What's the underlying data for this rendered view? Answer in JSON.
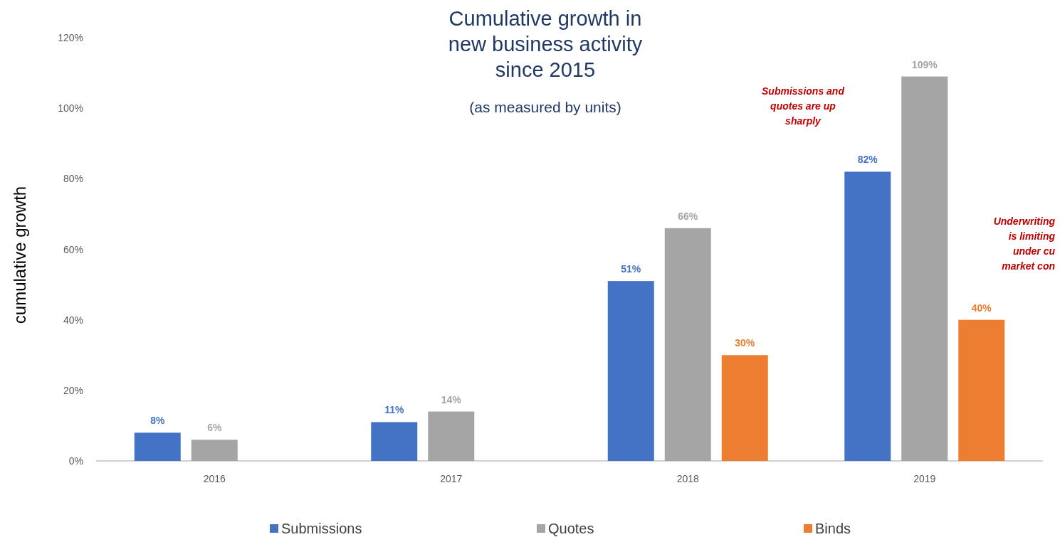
{
  "chart_data": {
    "type": "bar",
    "title": "Cumulative growth in\nnew business activity\nsince 2015",
    "subtitle": "(as measured by units)",
    "ylabel": "cumulative growth",
    "categories": [
      "2016",
      "2017",
      "2018",
      "2019"
    ],
    "series": [
      {
        "name": "Submissions",
        "color": "#4472c4",
        "values": [
          8,
          11,
          51,
          82
        ],
        "value_labels": [
          "8%",
          "11%",
          "51%",
          "82%"
        ]
      },
      {
        "name": "Quotes",
        "color": "#a5a5a5",
        "values": [
          6,
          14,
          66,
          109
        ],
        "value_labels": [
          "6%",
          "14%",
          "66%",
          "109%"
        ]
      },
      {
        "name": "Binds",
        "color": "#ed7d31",
        "values": [
          null,
          null,
          30,
          40
        ],
        "value_labels": [
          null,
          null,
          "30%",
          "40%"
        ]
      }
    ],
    "ylim": [
      0,
      120
    ],
    "yticks": [
      {
        "value": 0,
        "label": "0%"
      },
      {
        "value": 20,
        "label": "20%"
      },
      {
        "value": 40,
        "label": "40%"
      },
      {
        "value": 60,
        "label": "60%"
      },
      {
        "value": 80,
        "label": "80%"
      },
      {
        "value": 100,
        "label": "100%"
      },
      {
        "value": 120,
        "label": "120%"
      }
    ],
    "legend": "bottom",
    "annotations": [
      "Submissions and\nquotes are up\nsharply",
      "Underwriting\nis limiting\nunder cu\nmarket con"
    ]
  }
}
